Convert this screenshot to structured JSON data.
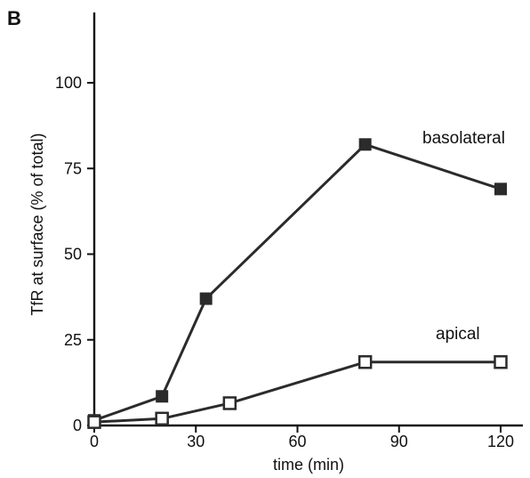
{
  "chart_data": {
    "type": "line",
    "panel_label": "B",
    "title": "",
    "xlabel": "time (min)",
    "ylabel": "TfR at surface (% of total)",
    "xlim": [
      0,
      120
    ],
    "ylim": [
      0,
      100
    ],
    "xticks": [
      0,
      30,
      60,
      90,
      120
    ],
    "yticks": [
      0,
      25,
      50,
      75,
      100
    ],
    "grid": false,
    "legend": "none",
    "series": [
      {
        "name": "basolateral",
        "marker": "filled-square",
        "color": "#2b2b2b",
        "x": [
          0,
          20,
          33,
          80,
          120
        ],
        "y": [
          1.5,
          8.5,
          37,
          82,
          69
        ]
      },
      {
        "name": "apical",
        "marker": "open-square",
        "color": "#2b2b2b",
        "x": [
          0,
          20,
          40,
          80,
          120
        ],
        "y": [
          1,
          2,
          6.5,
          18.5,
          18.5
        ]
      }
    ]
  }
}
